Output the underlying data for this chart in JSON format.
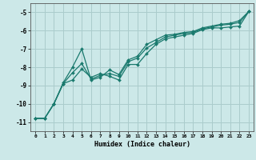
{
  "xlabel": "Humidex (Indice chaleur)",
  "ylabel": "",
  "bg_color": "#cce8e8",
  "grid_color": "#aacccc",
  "line_color": "#1a7a6e",
  "xlim": [
    -0.5,
    23.5
  ],
  "ylim": [
    -11.5,
    -4.5
  ],
  "xticks": [
    0,
    1,
    2,
    3,
    4,
    5,
    6,
    7,
    8,
    9,
    10,
    11,
    12,
    13,
    14,
    15,
    16,
    17,
    18,
    19,
    20,
    21,
    22,
    23
  ],
  "yticks": [
    -11,
    -10,
    -9,
    -8,
    -7,
    -6,
    -5
  ],
  "series1_x": [
    0,
    1,
    2,
    3,
    4,
    5,
    6,
    7,
    8,
    9,
    10,
    11,
    12,
    13,
    14,
    15,
    16,
    17,
    18,
    19,
    20,
    21,
    22,
    23
  ],
  "series1_y": [
    -10.8,
    -10.8,
    -10.0,
    -8.9,
    -8.7,
    -8.1,
    -8.55,
    -8.35,
    -8.5,
    -8.7,
    -7.85,
    -7.85,
    -7.25,
    -6.75,
    -6.45,
    -6.35,
    -6.25,
    -6.15,
    -5.95,
    -5.85,
    -5.85,
    -5.8,
    -5.75,
    -4.95
  ],
  "series2_x": [
    0,
    1,
    2,
    3,
    4,
    5,
    6,
    7,
    8,
    9,
    10,
    11,
    12,
    13,
    14,
    15,
    16,
    17,
    18,
    19,
    20,
    21,
    22,
    23
  ],
  "series2_y": [
    -10.8,
    -10.8,
    -10.0,
    -8.9,
    -8.3,
    -7.8,
    -8.65,
    -8.45,
    -8.35,
    -8.5,
    -7.7,
    -7.5,
    -6.95,
    -6.65,
    -6.35,
    -6.25,
    -6.15,
    -6.1,
    -5.9,
    -5.8,
    -5.7,
    -5.65,
    -5.55,
    -4.95
  ],
  "series3_x": [
    0,
    1,
    2,
    3,
    4,
    5,
    6,
    7,
    8,
    9,
    10,
    11,
    12,
    13,
    14,
    15,
    16,
    17,
    18,
    19,
    20,
    21,
    22,
    23
  ],
  "series3_y": [
    -10.8,
    -10.8,
    -10.0,
    -8.85,
    -8.0,
    -7.0,
    -8.7,
    -8.55,
    -8.15,
    -8.4,
    -7.6,
    -7.4,
    -6.75,
    -6.5,
    -6.25,
    -6.2,
    -6.1,
    -6.05,
    -5.85,
    -5.75,
    -5.65,
    -5.6,
    -5.45,
    -4.95
  ]
}
